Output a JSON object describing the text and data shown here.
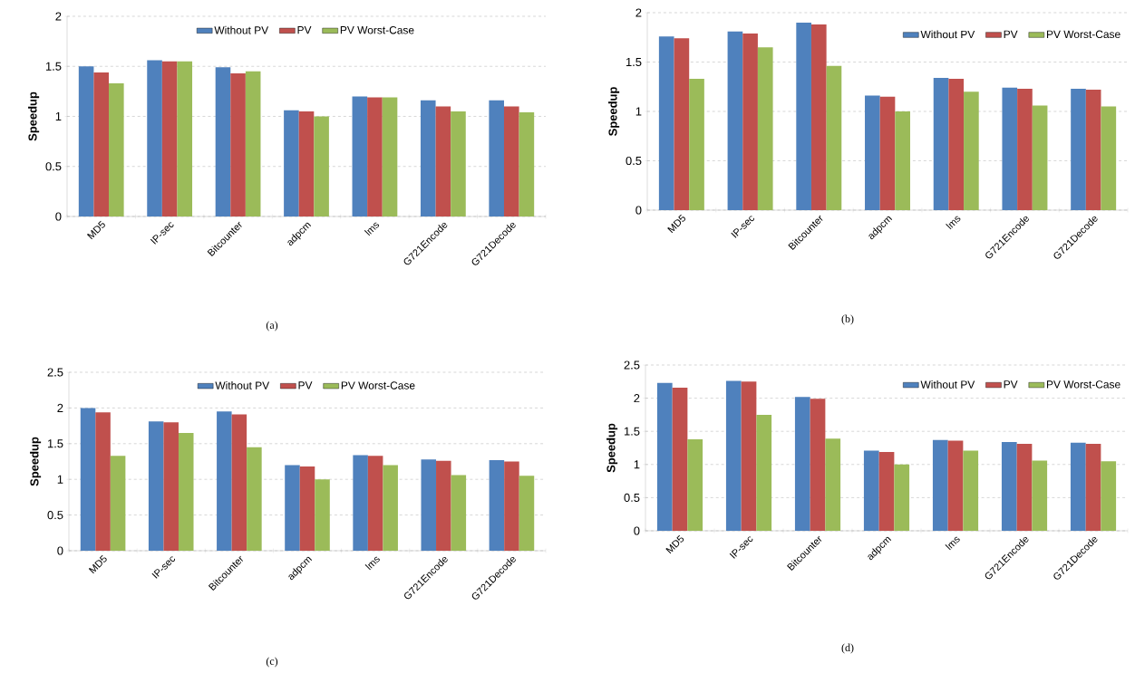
{
  "chart_data": [
    {
      "type": "bar",
      "title": "(a)",
      "ylabel": "Speedup",
      "categories": [
        "MD5",
        "IP-sec",
        "Bitcounter",
        "adpcm",
        "lms",
        "G721Encode",
        "G721Decode"
      ],
      "ylim": [
        0,
        2
      ],
      "yticks": [
        0,
        0.5,
        1,
        1.5,
        2
      ],
      "grid": "y",
      "legend": "top",
      "series": [
        {
          "name": "Without PV",
          "color": "#4f81bd",
          "values": [
            1.5,
            1.56,
            1.49,
            1.06,
            1.2,
            1.16,
            1.16
          ]
        },
        {
          "name": "PV",
          "color": "#c0504d",
          "values": [
            1.44,
            1.55,
            1.43,
            1.05,
            1.19,
            1.1,
            1.1
          ]
        },
        {
          "name": "PV Worst-Case",
          "color": "#9bbb59",
          "values": [
            1.33,
            1.55,
            1.45,
            1.0,
            1.19,
            1.05,
            1.04
          ]
        }
      ]
    },
    {
      "type": "bar",
      "title": "(b)",
      "ylabel": "Speedup",
      "categories": [
        "MD5",
        "IP-sec",
        "Bitcounter",
        "adpcm",
        "lms",
        "G721Encode",
        "G721Decode"
      ],
      "ylim": [
        0,
        2
      ],
      "yticks": [
        0,
        0.5,
        1,
        1.5,
        2
      ],
      "grid": "y",
      "legend": "top right",
      "series": [
        {
          "name": "Without PV",
          "color": "#4f81bd",
          "values": [
            1.76,
            1.81,
            1.9,
            1.16,
            1.34,
            1.24,
            1.23
          ]
        },
        {
          "name": "PV",
          "color": "#c0504d",
          "values": [
            1.74,
            1.79,
            1.88,
            1.15,
            1.33,
            1.23,
            1.22
          ]
        },
        {
          "name": "PV Worst-Case",
          "color": "#9bbb59",
          "values": [
            1.33,
            1.65,
            1.46,
            1.0,
            1.2,
            1.06,
            1.05
          ]
        }
      ]
    },
    {
      "type": "bar",
      "title": "(c)",
      "ylabel": "Speedup",
      "categories": [
        "MD5",
        "IP-sec",
        "Bitcounter",
        "adpcm",
        "lms",
        "G721Encode",
        "G721Decode"
      ],
      "ylim": [
        0,
        2.5
      ],
      "yticks": [
        0,
        0.5,
        1,
        1.5,
        2,
        2.5
      ],
      "grid": "y",
      "legend": "top",
      "series": [
        {
          "name": "Without PV",
          "color": "#4f81bd",
          "values": [
            2.0,
            1.81,
            1.95,
            1.2,
            1.34,
            1.28,
            1.27
          ]
        },
        {
          "name": "PV",
          "color": "#c0504d",
          "values": [
            1.94,
            1.8,
            1.91,
            1.18,
            1.33,
            1.26,
            1.25
          ]
        },
        {
          "name": "PV Worst-Case",
          "color": "#9bbb59",
          "values": [
            1.33,
            1.65,
            1.45,
            1.0,
            1.2,
            1.06,
            1.05
          ]
        }
      ]
    },
    {
      "type": "bar",
      "title": "(d)",
      "ylabel": "Speedup",
      "categories": [
        "MD5",
        "IP-sec",
        "Bitcounter",
        "adpcm",
        "lms",
        "G721Encode",
        "G721Decode"
      ],
      "ylim": [
        0,
        2.5
      ],
      "yticks": [
        0,
        0.5,
        1,
        1.5,
        2,
        2.5
      ],
      "grid": "y",
      "legend": "top right",
      "series": [
        {
          "name": "Without PV",
          "color": "#4f81bd",
          "values": [
            2.23,
            2.26,
            2.02,
            1.21,
            1.37,
            1.34,
            1.33
          ]
        },
        {
          "name": "PV",
          "color": "#c0504d",
          "values": [
            2.16,
            2.25,
            1.99,
            1.19,
            1.36,
            1.31,
            1.31
          ]
        },
        {
          "name": "PV Worst-Case",
          "color": "#9bbb59",
          "values": [
            1.38,
            1.75,
            1.39,
            1.0,
            1.21,
            1.06,
            1.05
          ]
        }
      ]
    }
  ]
}
